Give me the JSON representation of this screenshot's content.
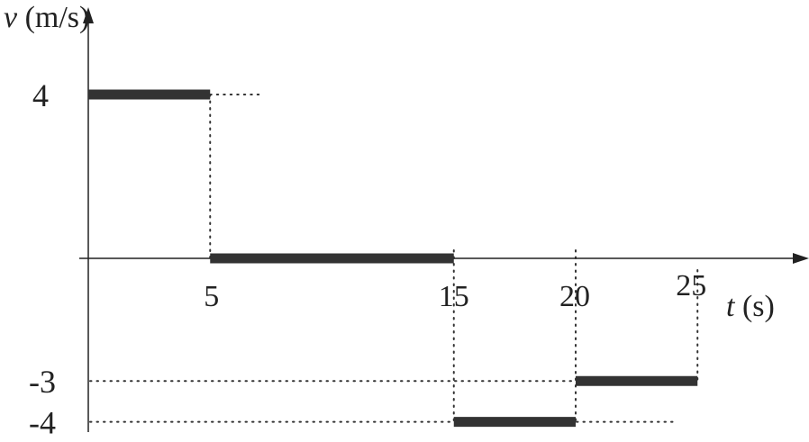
{
  "chart_data": {
    "type": "line",
    "subtype": "step",
    "ylabel_var": "v",
    "ylabel_unit": "(m/s)",
    "xlabel_var": "t",
    "xlabel_unit": "(s)",
    "x_ticks": [
      "5",
      "15",
      "20",
      "25"
    ],
    "x_tick_values": [
      5,
      15,
      20,
      25
    ],
    "y_ticks": [
      "4",
      "-3",
      "-4"
    ],
    "y_tick_values": [
      4,
      -3,
      -4
    ],
    "xlim": [
      0,
      29
    ],
    "ylim": [
      -4.3,
      6
    ],
    "grid": false,
    "segments": [
      {
        "t_start": 0,
        "t_end": 5,
        "v": 4
      },
      {
        "t_start": 5,
        "t_end": 15,
        "v": 0
      },
      {
        "t_start": 15,
        "t_end": 20,
        "v": -4
      },
      {
        "t_start": 20,
        "t_end": 25,
        "v": -3
      }
    ],
    "line_color": "#333333"
  }
}
